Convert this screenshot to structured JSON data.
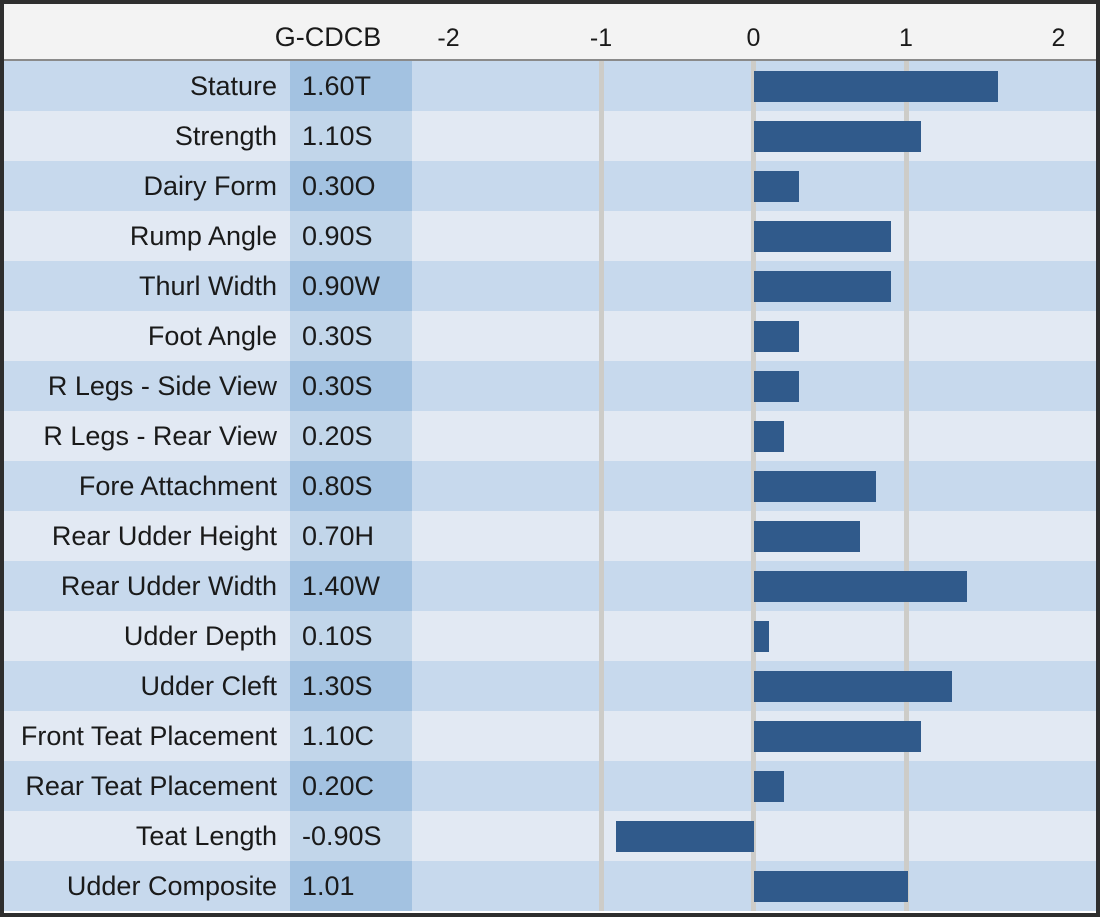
{
  "header": {
    "value_column_label": "G-CDCB",
    "axis_tick_labels": [
      "-2",
      "-1",
      "0",
      "1",
      "2"
    ]
  },
  "chart_data": {
    "type": "bar",
    "orientation": "horizontal",
    "value_column_header": "G-CDCB",
    "categories": [
      "Stature",
      "Strength",
      "Dairy Form",
      "Rump Angle",
      "Thurl Width",
      "Foot Angle",
      "R Legs - Side View",
      "R Legs - Rear View",
      "Fore Attachment",
      "Rear Udder Height",
      "Rear Udder Width",
      "Udder Depth",
      "Udder Cleft",
      "Front Teat Placement",
      "Rear Teat Placement",
      "Teat Length",
      "Udder Composite"
    ],
    "value_labels": [
      "1.60T",
      "1.10S",
      "0.30O",
      "0.90S",
      "0.90W",
      "0.30S",
      "0.30S",
      "0.20S",
      "0.80S",
      "0.70H",
      "1.40W",
      "0.10S",
      "1.30S",
      "1.10C",
      "0.20C",
      "-0.90S",
      "1.01"
    ],
    "values": [
      1.6,
      1.1,
      0.3,
      0.9,
      0.9,
      0.3,
      0.3,
      0.2,
      0.8,
      0.7,
      1.4,
      0.1,
      1.3,
      1.1,
      0.2,
      -0.9,
      1.01
    ],
    "xlim": [
      -2,
      2
    ],
    "x_ticks": [
      -2,
      -1,
      0,
      1,
      2
    ],
    "gridlines_at": [
      -1,
      0,
      1
    ],
    "grid": true,
    "legend": false,
    "bar_alignment": "zero-baseline"
  },
  "colors": {
    "bar": "#305a8b",
    "row_dark": "#c7d9ed",
    "row_light": "#e2e9f3",
    "value_cell_dark": "#a3c2e1",
    "value_cell_light": "#c2d6ea",
    "gridline": "#cdccc8",
    "header_bg": "#f3f3f3",
    "border": "#2e2e2e",
    "text": "#1a1a1a"
  }
}
